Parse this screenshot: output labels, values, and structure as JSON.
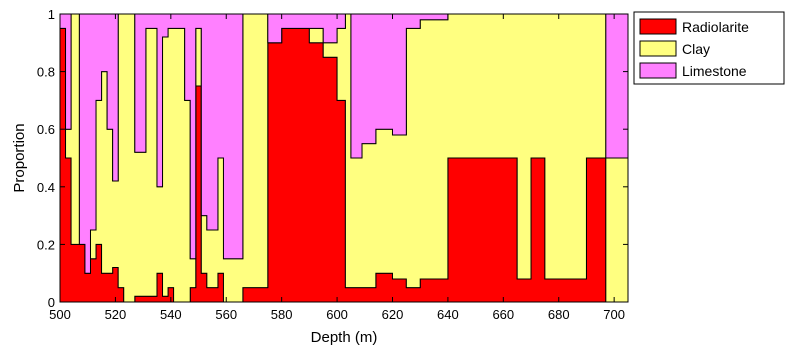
{
  "chart_data": {
    "type": "area",
    "stacked": true,
    "xlabel": "Depth (m)",
    "ylabel": "Proportion",
    "xlim": [
      500,
      705
    ],
    "ylim": [
      0,
      1
    ],
    "xticks": [
      500,
      520,
      540,
      560,
      580,
      600,
      620,
      640,
      660,
      680,
      700
    ],
    "yticks": [
      0,
      0.2,
      0.4,
      0.6,
      0.8,
      1
    ],
    "grid": false,
    "legend_position": "outside-top-right",
    "x": [
      500,
      502,
      504,
      507,
      509,
      511,
      513,
      515,
      517,
      519,
      521,
      523,
      525,
      527,
      531,
      535,
      537,
      539,
      541,
      543,
      545,
      547,
      549,
      551,
      553,
      557,
      559,
      562,
      566,
      570,
      575,
      580,
      585,
      590,
      595,
      600,
      603,
      605,
      609,
      614,
      620,
      625,
      630,
      635,
      640,
      645,
      650,
      655,
      660,
      665,
      670,
      675,
      680,
      685,
      690,
      695,
      697,
      705
    ],
    "series": [
      {
        "name": "Radiolarite",
        "color": "#ff0000",
        "values": [
          0.95,
          0.5,
          0.2,
          0.2,
          0.1,
          0.15,
          0.2,
          0.1,
          0.1,
          0.12,
          0.05,
          0.0,
          0.0,
          0.02,
          0.02,
          0.1,
          0.02,
          0.05,
          0.0,
          0.0,
          0.0,
          0.05,
          0.75,
          0.1,
          0.05,
          0.1,
          0.0,
          0.0,
          0.05,
          0.05,
          0.9,
          0.95,
          0.95,
          0.9,
          0.85,
          0.7,
          0.05,
          0.05,
          0.05,
          0.1,
          0.08,
          0.05,
          0.08,
          0.08,
          0.5,
          0.5,
          0.5,
          0.5,
          0.5,
          0.08,
          0.5,
          0.08,
          0.08,
          0.08,
          0.5,
          0.5,
          0.0,
          0.0
        ]
      },
      {
        "name": "Clay",
        "color": "#ffff80",
        "values": [
          0.0,
          0.1,
          0.8,
          0.0,
          0.0,
          0.1,
          0.5,
          0.7,
          0.5,
          0.3,
          0.95,
          1.0,
          1.0,
          0.5,
          0.93,
          0.3,
          0.9,
          0.9,
          0.95,
          0.95,
          0.7,
          0.1,
          0.2,
          0.2,
          0.2,
          0.4,
          0.15,
          0.15,
          0.95,
          0.95,
          0.0,
          0.0,
          0.0,
          0.05,
          0.05,
          0.25,
          0.95,
          0.45,
          0.5,
          0.5,
          0.5,
          0.9,
          0.9,
          0.9,
          0.5,
          0.5,
          0.5,
          0.5,
          0.5,
          0.92,
          0.5,
          0.92,
          0.92,
          0.92,
          0.5,
          0.5,
          0.5,
          0.5
        ]
      },
      {
        "name": "Limestone",
        "color": "#ff80ff",
        "values": [
          0.05,
          0.4,
          0.0,
          0.8,
          0.9,
          0.75,
          0.3,
          0.2,
          0.4,
          0.58,
          0.0,
          0.0,
          0.0,
          0.48,
          0.05,
          0.6,
          0.08,
          0.05,
          0.05,
          0.05,
          0.3,
          0.85,
          0.05,
          0.7,
          0.75,
          0.5,
          0.85,
          0.85,
          0.0,
          0.0,
          0.1,
          0.05,
          0.05,
          0.05,
          0.1,
          0.05,
          0.0,
          0.5,
          0.45,
          0.4,
          0.42,
          0.05,
          0.02,
          0.02,
          0.0,
          0.0,
          0.0,
          0.0,
          0.0,
          0.0,
          0.0,
          0.0,
          0.0,
          0.0,
          0.0,
          0.0,
          0.5,
          0.5
        ]
      }
    ],
    "legend": [
      "Radiolarite",
      "Clay",
      "Limestone"
    ]
  }
}
